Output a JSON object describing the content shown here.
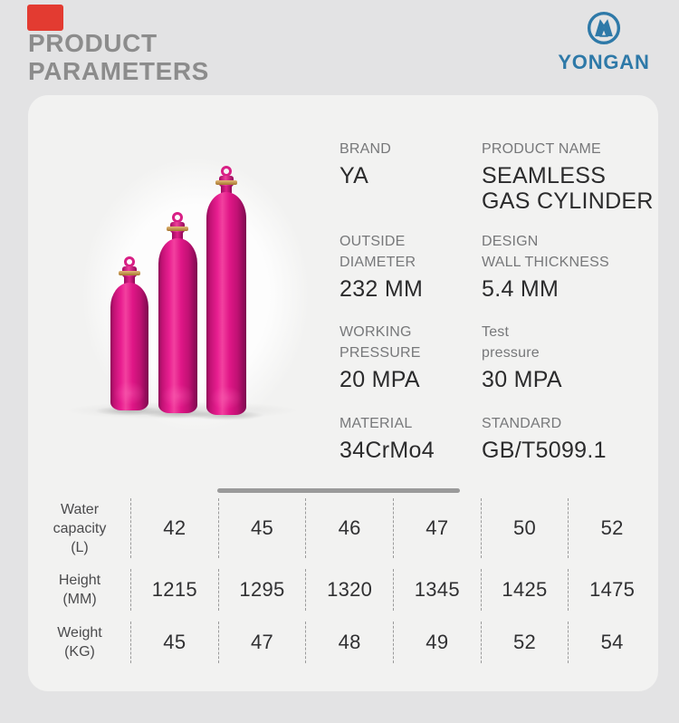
{
  "header": {
    "title_lines": [
      "PRODUCT",
      "PARAMETERS"
    ],
    "title_color": "#8c8c8c",
    "accent_square_color": "#e33b31"
  },
  "logo": {
    "wordmark": "YONGAN",
    "brand_color": "#2e79a8"
  },
  "product_photo": {
    "cylinder_count": 3,
    "cylinder_color": "#e01687"
  },
  "specs": [
    {
      "label_lines": [
        "BRAND"
      ],
      "value_lines": [
        "YA"
      ]
    },
    {
      "label_lines": [
        "PRODUCT NAME"
      ],
      "value_lines": [
        "SEAMLESS",
        "GAS CYLINDER"
      ]
    },
    {
      "label_lines": [
        "OUTSIDE",
        "DIAMETER"
      ],
      "value_lines": [
        "232 MM"
      ]
    },
    {
      "label_lines": [
        "DESIGN",
        "WALL THICKNESS"
      ],
      "value_lines": [
        "5.4 MM"
      ]
    },
    {
      "label_lines": [
        "WORKING",
        "PRESSURE"
      ],
      "value_lines": [
        "20 MPA"
      ]
    },
    {
      "label_lines": [
        "Test",
        "pressure"
      ],
      "value_lines": [
        "30 MPA"
      ]
    },
    {
      "label_lines": [
        "MATERIAL"
      ],
      "value_lines": [
        "34CrMo4"
      ]
    },
    {
      "label_lines": [
        "STANDARD"
      ],
      "value_lines": [
        "GB/T5099.1"
      ]
    }
  ],
  "table": {
    "rows": [
      {
        "label_lines": [
          "Water",
          "capacity",
          "(L)"
        ],
        "values": [
          "42",
          "45",
          "46",
          "47",
          "50",
          "52"
        ]
      },
      {
        "label_lines": [
          "Height",
          "(MM)"
        ],
        "values": [
          "1215",
          "1295",
          "1320",
          "1345",
          "1425",
          "1475"
        ]
      },
      {
        "label_lines": [
          "Weight",
          "(KG)"
        ],
        "values": [
          "45",
          "47",
          "48",
          "49",
          "52",
          "54"
        ]
      }
    ]
  }
}
